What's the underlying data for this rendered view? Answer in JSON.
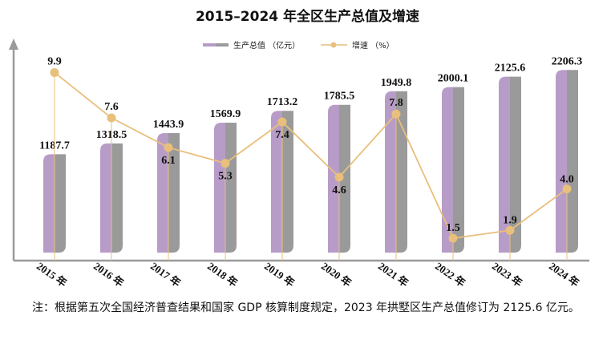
{
  "chart_data": {
    "type": "bar+line",
    "title": "2015–2024 年全区生产总值及增速",
    "categories": [
      "2015 年",
      "2016 年",
      "2017 年",
      "2018 年",
      "2019 年",
      "2020 年",
      "2021 年",
      "2022 年",
      "2023 年",
      "2024 年"
    ],
    "series": [
      {
        "name": "生产总值 （亿元）",
        "type": "bar",
        "values": [
          1187.7,
          1318.5,
          1443.9,
          1569.9,
          1713.2,
          1785.5,
          1949.8,
          2000.1,
          2125.6,
          2206.3
        ],
        "labels": [
          "1187.7",
          "1318.5",
          "1443.9",
          "1569.9",
          "1713.2",
          "1785.5",
          "1949.8",
          "2000.1",
          "2125.6",
          "2206.3"
        ]
      },
      {
        "name": "增速 （%）",
        "type": "line",
        "values": [
          9.9,
          7.6,
          6.1,
          5.3,
          7.4,
          4.6,
          7.8,
          1.5,
          1.9,
          4.0
        ],
        "labels": [
          "9.9",
          "7.6",
          "6.1",
          "5.3",
          "7.4",
          "4.6",
          "7.8",
          "1.5",
          "1.9",
          "4.0"
        ]
      }
    ],
    "legend_position": "top-right",
    "colors": {
      "bar_left": "#b89cc8",
      "bar_right": "#9a9a9a",
      "line": "#e9bf7c",
      "axis": "#9a9a9a"
    }
  },
  "footnote": "注：根据第五次全国经济普查结果和国家 GDP 核算制度规定，2023 年拱墅区生产总值修订为 2125.6 亿元。"
}
